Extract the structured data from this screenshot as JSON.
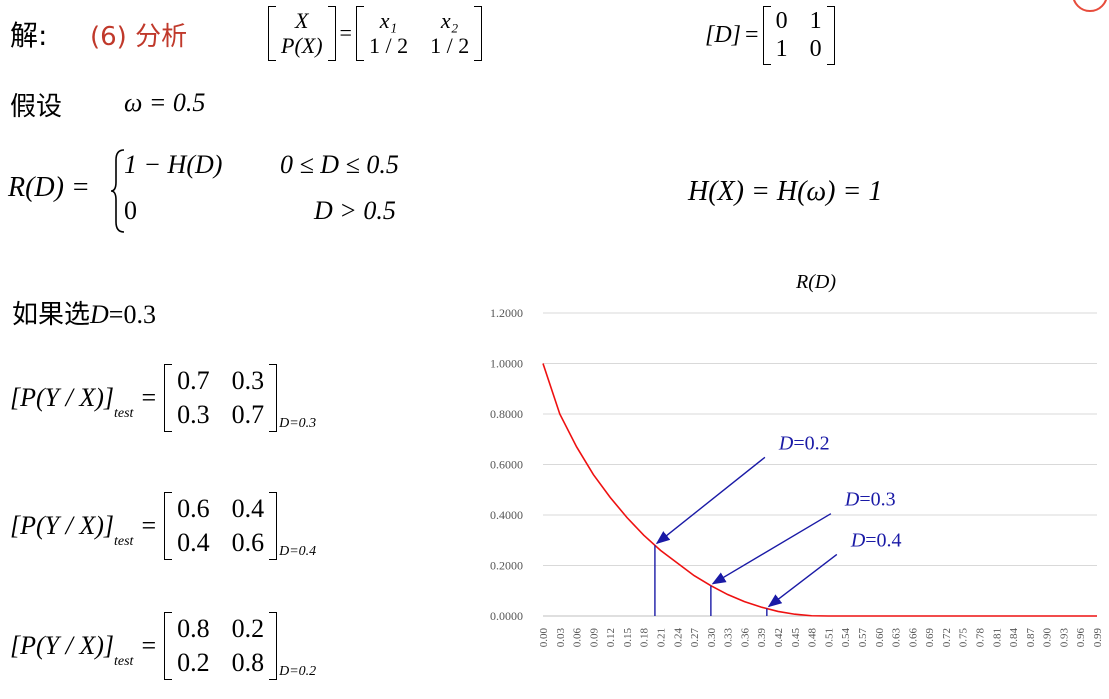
{
  "header": {
    "solution_label": "解:",
    "part_label": "(6) 分析",
    "part_color": "#c0392b"
  },
  "source": {
    "lhs_top": "X",
    "lhs_bottom": "P(X)",
    "row1": [
      "x₁",
      "x₂"
    ],
    "row2": [
      "1 / 2",
      "1 / 2"
    ]
  },
  "distortion": {
    "label": "[D]",
    "rows": [
      [
        "0",
        "1"
      ],
      [
        "1",
        "0"
      ]
    ]
  },
  "assumption": {
    "label": "假设",
    "expr": "ω = 0.5"
  },
  "rate_function": {
    "lhs": "R(D) =",
    "case1_expr": "1 − H(D)",
    "case1_cond": "0 ≤ D ≤ 0.5",
    "case2_expr": "0",
    "case2_cond": "D > 0.5"
  },
  "entropy": {
    "expr": "H(X) = H(ω) = 1"
  },
  "choice": {
    "prefix": "如果选",
    "var": "D",
    "suffix": "=0.3"
  },
  "test_channels": [
    {
      "lhs": "[P(Y / X)]",
      "sub": "test",
      "rows": [
        [
          "0.7",
          "0.3"
        ],
        [
          "0.3",
          "0.7"
        ]
      ],
      "subscript": "D=0.3"
    },
    {
      "lhs": "[P(Y / X)]",
      "sub": "test",
      "rows": [
        [
          "0.6",
          "0.4"
        ],
        [
          "0.4",
          "0.6"
        ]
      ],
      "subscript": "D=0.4"
    },
    {
      "lhs": "[P(Y / X)]",
      "sub": "test",
      "rows": [
        [
          "0.8",
          "0.2"
        ],
        [
          "0.2",
          "0.8"
        ]
      ],
      "subscript": "D=0.2"
    }
  ],
  "chart_data": {
    "type": "line",
    "title": "R(D)",
    "xlabel": "",
    "ylabel": "",
    "ylim": [
      0,
      1.2
    ],
    "yticks": [
      "1.2000",
      "1.0000",
      "0.8000",
      "0.6000",
      "0.4000",
      "0.2000",
      "0.0000"
    ],
    "x": [
      0.0,
      0.03,
      0.06,
      0.09,
      0.12,
      0.15,
      0.18,
      0.21,
      0.24,
      0.27,
      0.3,
      0.33,
      0.36,
      0.39,
      0.42,
      0.45,
      0.48,
      0.51,
      0.54,
      0.57,
      0.6,
      0.63,
      0.66,
      0.69,
      0.72,
      0.75,
      0.78,
      0.81,
      0.84,
      0.87,
      0.9,
      0.93,
      0.96,
      0.99
    ],
    "xtick_labels": [
      "0.00",
      "0.03",
      "0.06",
      "0.09",
      "0.12",
      "0.15",
      "0.18",
      "0.21",
      "0.24",
      "0.27",
      "0.30",
      "0.33",
      "0.36",
      "0.39",
      "0.42",
      "0.45",
      "0.48",
      "0.51",
      "0.54",
      "0.57",
      "0.60",
      "0.63",
      "0.66",
      "0.69",
      "0.72",
      "0.75",
      "0.78",
      "0.81",
      "0.84",
      "0.87",
      "0.90",
      "0.93",
      "0.96",
      "0.99"
    ],
    "series": [
      {
        "color": "#ee1111",
        "values": [
          1.0,
          0.8,
          0.67,
          0.56,
          0.47,
          0.39,
          0.32,
          0.26,
          0.21,
          0.16,
          0.12,
          0.085,
          0.057,
          0.035,
          0.018,
          0.007,
          0.001,
          0,
          0,
          0,
          0,
          0,
          0,
          0,
          0,
          0,
          0,
          0,
          0,
          0,
          0,
          0,
          0,
          0
        ]
      }
    ],
    "annotations": [
      {
        "var": "D",
        "text": "=0.2",
        "x": 0.2,
        "y": 0.28,
        "color": "#1a1aa6"
      },
      {
        "var": "D",
        "text": "=0.3",
        "x": 0.3,
        "y": 0.12,
        "color": "#1a1aa6"
      },
      {
        "var": "D",
        "text": "=0.4",
        "x": 0.4,
        "y": 0.03,
        "color": "#1a1aa6"
      }
    ],
    "grid": true
  }
}
